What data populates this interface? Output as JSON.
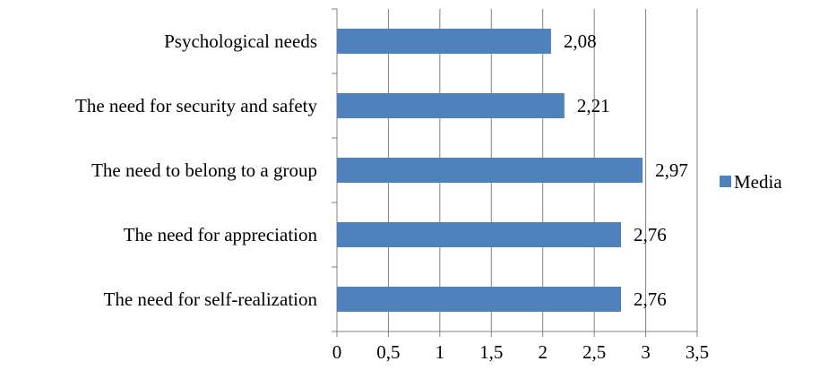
{
  "chart_data": {
    "type": "bar",
    "orientation": "horizontal",
    "categories": [
      "Psychological needs",
      "The need for security and safety",
      "The need to belong to a group",
      "The need for appreciation",
      "The need for self-realization"
    ],
    "series": [
      {
        "name": "Media",
        "values": [
          2.08,
          2.21,
          2.97,
          2.76,
          2.76
        ],
        "data_labels": [
          "2,08",
          "2,21",
          "2,97",
          "2,76",
          "2,76"
        ],
        "color": "#4F81BD"
      }
    ],
    "xlim": [
      0,
      3.5
    ],
    "x_ticks": [
      0,
      0.5,
      1,
      1.5,
      2,
      2.5,
      3,
      3.5
    ],
    "x_tick_labels": [
      "0",
      "0,5",
      "1",
      "1,5",
      "2",
      "2,5",
      "3",
      "3,5"
    ],
    "grid": "vertical major gridlines",
    "gridline_color": "#808080",
    "legend": {
      "placement": "right",
      "entries": [
        "Media"
      ]
    },
    "title": "",
    "xlabel": "",
    "ylabel": ""
  }
}
